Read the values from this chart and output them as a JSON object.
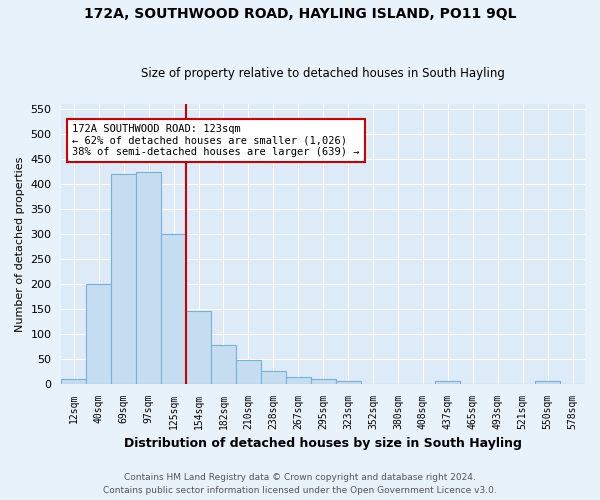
{
  "title1": "172A, SOUTHWOOD ROAD, HAYLING ISLAND, PO11 9QL",
  "title2": "Size of property relative to detached houses in South Hayling",
  "xlabel": "Distribution of detached houses by size in South Hayling",
  "ylabel": "Number of detached properties",
  "footnote1": "Contains HM Land Registry data © Crown copyright and database right 2024.",
  "footnote2": "Contains public sector information licensed under the Open Government Licence v3.0.",
  "bin_labels": [
    "12sqm",
    "40sqm",
    "69sqm",
    "97sqm",
    "125sqm",
    "154sqm",
    "182sqm",
    "210sqm",
    "238sqm",
    "267sqm",
    "295sqm",
    "323sqm",
    "352sqm",
    "380sqm",
    "408sqm",
    "437sqm",
    "465sqm",
    "493sqm",
    "521sqm",
    "550sqm",
    "578sqm"
  ],
  "bar_heights": [
    10,
    200,
    420,
    425,
    300,
    145,
    78,
    48,
    25,
    13,
    9,
    6,
    0,
    0,
    0,
    5,
    0,
    0,
    0,
    5,
    0
  ],
  "bar_color": "#c5ddf0",
  "bar_edge_color": "#7ab0d4",
  "vline_x": 4.5,
  "annotation_text": "172A SOUTHWOOD ROAD: 123sqm\n← 62% of detached houses are smaller (1,026)\n38% of semi-detached houses are larger (639) →",
  "annotation_box_color": "#ffffff",
  "annotation_box_edge": "#cc0000",
  "vline_color": "#cc0000",
  "ylim": [
    0,
    560
  ],
  "yticks": [
    0,
    50,
    100,
    150,
    200,
    250,
    300,
    350,
    400,
    450,
    500,
    550
  ],
  "bg_color": "#e8f2fb",
  "plot_bg_color": "#ddeaf7"
}
